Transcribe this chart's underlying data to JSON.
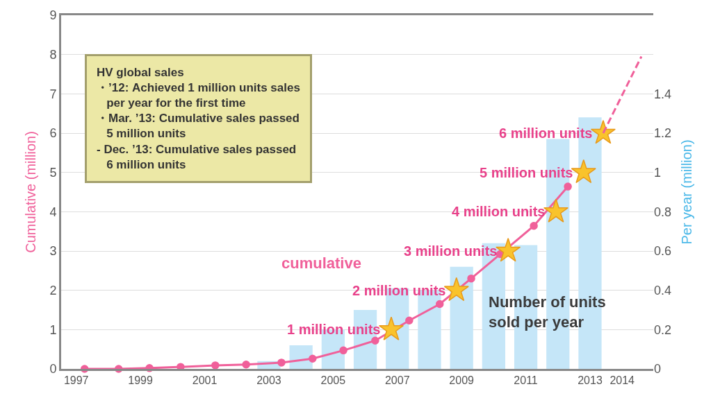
{
  "chart_data": {
    "type": "line",
    "ylabel": "Cumulative (million)",
    "y2label": "Per year (million)",
    "annotations": [
      "HV global sales\n・’12: Achieved 1 million units sales\n   per year for the first time\n・Mar. ’13: Cumulative sales passed\n   5 million units\n- Dec. ’13: Cumulative sales passed\n   6 million units"
    ],
    "xlim": [
      1996.53,
      2014.97
    ],
    "xticks": [
      1997,
      1999,
      2001,
      2003,
      2005,
      2007,
      2009,
      2011,
      2013,
      2014
    ],
    "ylim": [
      0,
      9
    ],
    "yticks": [
      0,
      1,
      2,
      3,
      4,
      5,
      6,
      7,
      8,
      9
    ],
    "y2lim": [
      0,
      1.8
    ],
    "y2ticks": [
      0,
      0.2,
      0.4,
      0.6,
      0.8,
      1,
      1.2,
      1.4
    ],
    "grid": "y",
    "series": [
      {
        "type": "bar",
        "axis": "y2",
        "name": "Number of units sold per year",
        "color": "#c5e6f8",
        "x": [
          2003,
          2004,
          2005,
          2006,
          2007,
          2008,
          2009,
          2010,
          2011,
          2012,
          2013
        ],
        "values": [
          0.04,
          0.12,
          0.2,
          0.3,
          0.41,
          0.4,
          0.52,
          0.64,
          0.63,
          1.17,
          1.28
        ]
      },
      {
        "name": "cumulative",
        "color": "#f0609a",
        "marker": "circle",
        "line_style": "solid",
        "x": [
          1997.26,
          1998.32,
          1999.28,
          2000.25,
          2001.33,
          2002.29,
          2003.39,
          2004.36,
          2005.32,
          2006.31,
          2007.37,
          2008.32,
          2009.3,
          2010.2,
          2011.25,
          2012.31
        ],
        "values": [
          0,
          0,
          0.02,
          0.05,
          0.09,
          0.11,
          0.16,
          0.26,
          0.47,
          0.72,
          1.23,
          1.65,
          2.3,
          2.92,
          3.64,
          4.64
        ]
      },
      {
        "type": "scatter",
        "color": "#f9c32c",
        "marker": "star",
        "x": [
          2006.81,
          2008.84,
          2010.45,
          2011.94,
          2012.8,
          2013.41
        ],
        "values": [
          1,
          2,
          3,
          4,
          5,
          6
        ],
        "value_labels": [
          "1 million units",
          "2 million units",
          "3 million units",
          "4 million units",
          "5 million units",
          "6 million units"
        ]
      },
      {
        "color": "#f0609a",
        "marker": "none",
        "line_style": "dashed",
        "x": [
          2013.41,
          2014.6
        ],
        "values": [
          6,
          7.95
        ]
      }
    ]
  }
}
